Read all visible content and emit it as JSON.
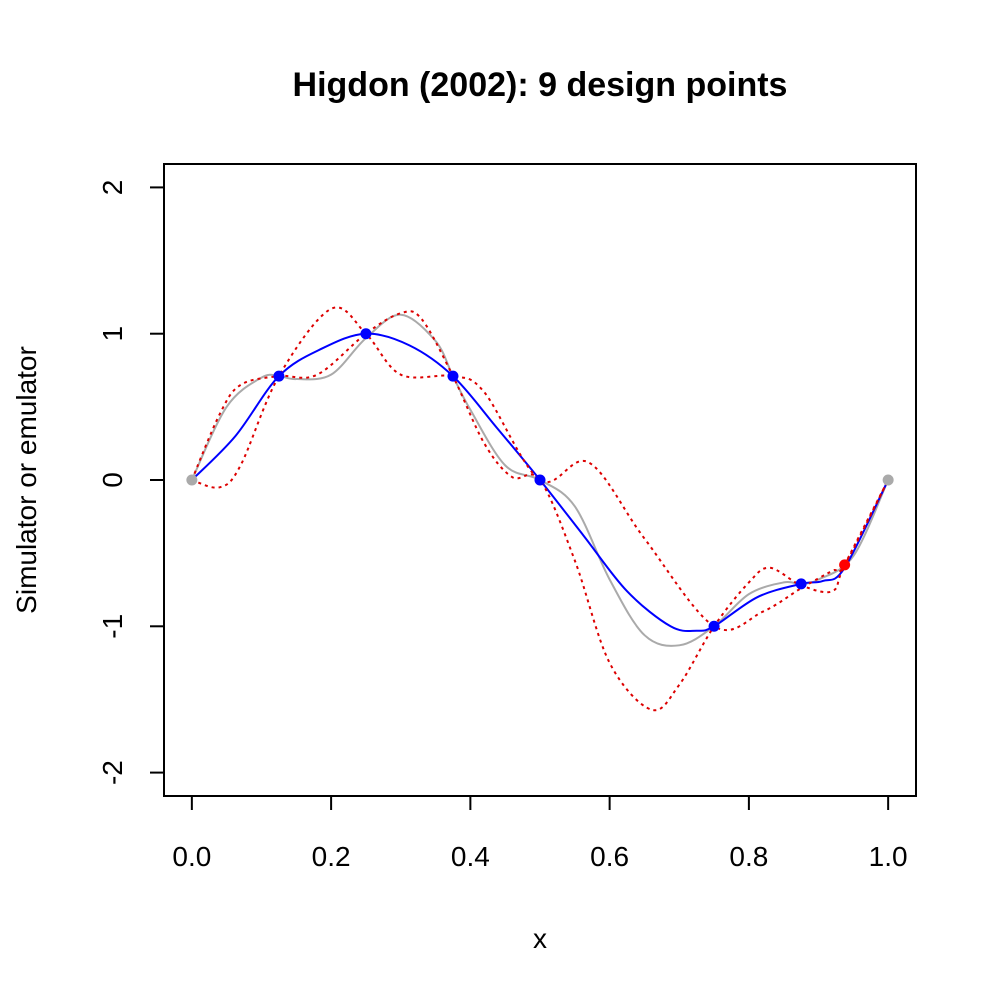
{
  "chart_data": {
    "type": "line",
    "title": "Higdon (2002):  9 design points",
    "xlabel": "x",
    "ylabel": "Simulator or emulator",
    "xlim": [
      -0.04,
      1.04
    ],
    "ylim": [
      -2.16,
      2.16
    ],
    "x_ticks": [
      0.0,
      0.2,
      0.4,
      0.6,
      0.8,
      1.0
    ],
    "x_tick_labels": [
      "0.0",
      "0.2",
      "0.4",
      "0.6",
      "0.8",
      "1.0"
    ],
    "y_ticks": [
      -2,
      -1,
      0,
      1,
      2
    ],
    "y_tick_labels": [
      "-2",
      "-1",
      "0",
      "1",
      "2"
    ],
    "grid": false,
    "colors": {
      "simulator": "#aaaaaa",
      "emulator_mean": "#0000ff",
      "emulator_band": "#dd0000",
      "design_point": "#0000ff",
      "boundary_point": "#aaaaaa",
      "red_point": "#ff0000"
    },
    "series": [
      {
        "style": "solid",
        "color": "#aaaaaa",
        "x": [
          0.0,
          0.05,
          0.1,
          0.125,
          0.15,
          0.2,
          0.25,
          0.3,
          0.35,
          0.375,
          0.4,
          0.45,
          0.5,
          0.55,
          0.6,
          0.65,
          0.7,
          0.75,
          0.8,
          0.85,
          0.875,
          0.9,
          0.95,
          1.0
        ],
        "y": [
          0.0,
          0.5,
          0.7,
          0.71,
          0.69,
          0.72,
          0.97,
          1.13,
          0.95,
          0.71,
          0.48,
          0.1,
          0.0,
          -0.18,
          -0.68,
          -1.06,
          -1.13,
          -1.0,
          -0.78,
          -0.7,
          -0.71,
          -0.68,
          -0.52,
          0.0
        ]
      },
      {
        "style": "solid",
        "color": "#0000ff",
        "x": [
          0.0,
          0.0625,
          0.125,
          0.1875,
          0.25,
          0.3125,
          0.375,
          0.4375,
          0.5,
          0.5625,
          0.625,
          0.6875,
          0.725,
          0.75,
          0.8125,
          0.875,
          0.9063,
          0.9375,
          1.0
        ],
        "y": [
          0.0,
          0.3,
          0.71,
          0.9,
          1.0,
          0.92,
          0.71,
          0.36,
          0.0,
          -0.38,
          -0.76,
          -1.0,
          -1.03,
          -1.0,
          -0.8,
          -0.71,
          -0.69,
          -0.6,
          0.0
        ]
      },
      {
        "style": "dotted",
        "color": "#dd0000",
        "x": [
          0.0,
          0.04,
          0.07,
          0.125,
          0.2,
          0.25,
          0.3,
          0.375,
          0.42,
          0.5,
          0.57,
          0.65,
          0.75,
          0.82,
          0.875,
          0.92,
          0.9375,
          1.0
        ],
        "y": [
          0.0,
          -0.05,
          0.1,
          0.71,
          1.17,
          1.0,
          0.72,
          0.71,
          0.6,
          0.0,
          0.12,
          -0.4,
          -1.0,
          -0.9,
          -0.74,
          -0.62,
          -0.58,
          0.0
        ]
      },
      {
        "style": "dotted",
        "color": "#dd0000",
        "x": [
          0.0,
          0.04,
          0.07,
          0.125,
          0.18,
          0.25,
          0.3,
          0.33,
          0.375,
          0.42,
          0.46,
          0.5,
          0.55,
          0.6,
          0.66,
          0.7,
          0.75,
          0.8,
          0.83,
          0.875,
          0.92,
          0.9375,
          1.0
        ],
        "y": [
          0.0,
          0.45,
          0.65,
          0.71,
          0.72,
          1.0,
          1.14,
          1.1,
          0.71,
          0.25,
          0.02,
          0.0,
          -0.55,
          -1.25,
          -1.57,
          -1.4,
          -1.0,
          -0.7,
          -0.6,
          -0.72,
          -0.76,
          -0.58,
          0.0
        ]
      }
    ],
    "points": [
      {
        "x": 0.0,
        "y": 0.0,
        "color": "#aaaaaa"
      },
      {
        "x": 0.125,
        "y": 0.71,
        "color": "#0000ff"
      },
      {
        "x": 0.25,
        "y": 1.0,
        "color": "#0000ff"
      },
      {
        "x": 0.375,
        "y": 0.71,
        "color": "#0000ff"
      },
      {
        "x": 0.5,
        "y": 0.0,
        "color": "#0000ff"
      },
      {
        "x": 0.75,
        "y": -1.0,
        "color": "#0000ff"
      },
      {
        "x": 0.875,
        "y": -0.71,
        "color": "#0000ff"
      },
      {
        "x": 0.9375,
        "y": -0.58,
        "color": "#ff0000"
      },
      {
        "x": 1.0,
        "y": 0.0,
        "color": "#aaaaaa"
      }
    ]
  }
}
